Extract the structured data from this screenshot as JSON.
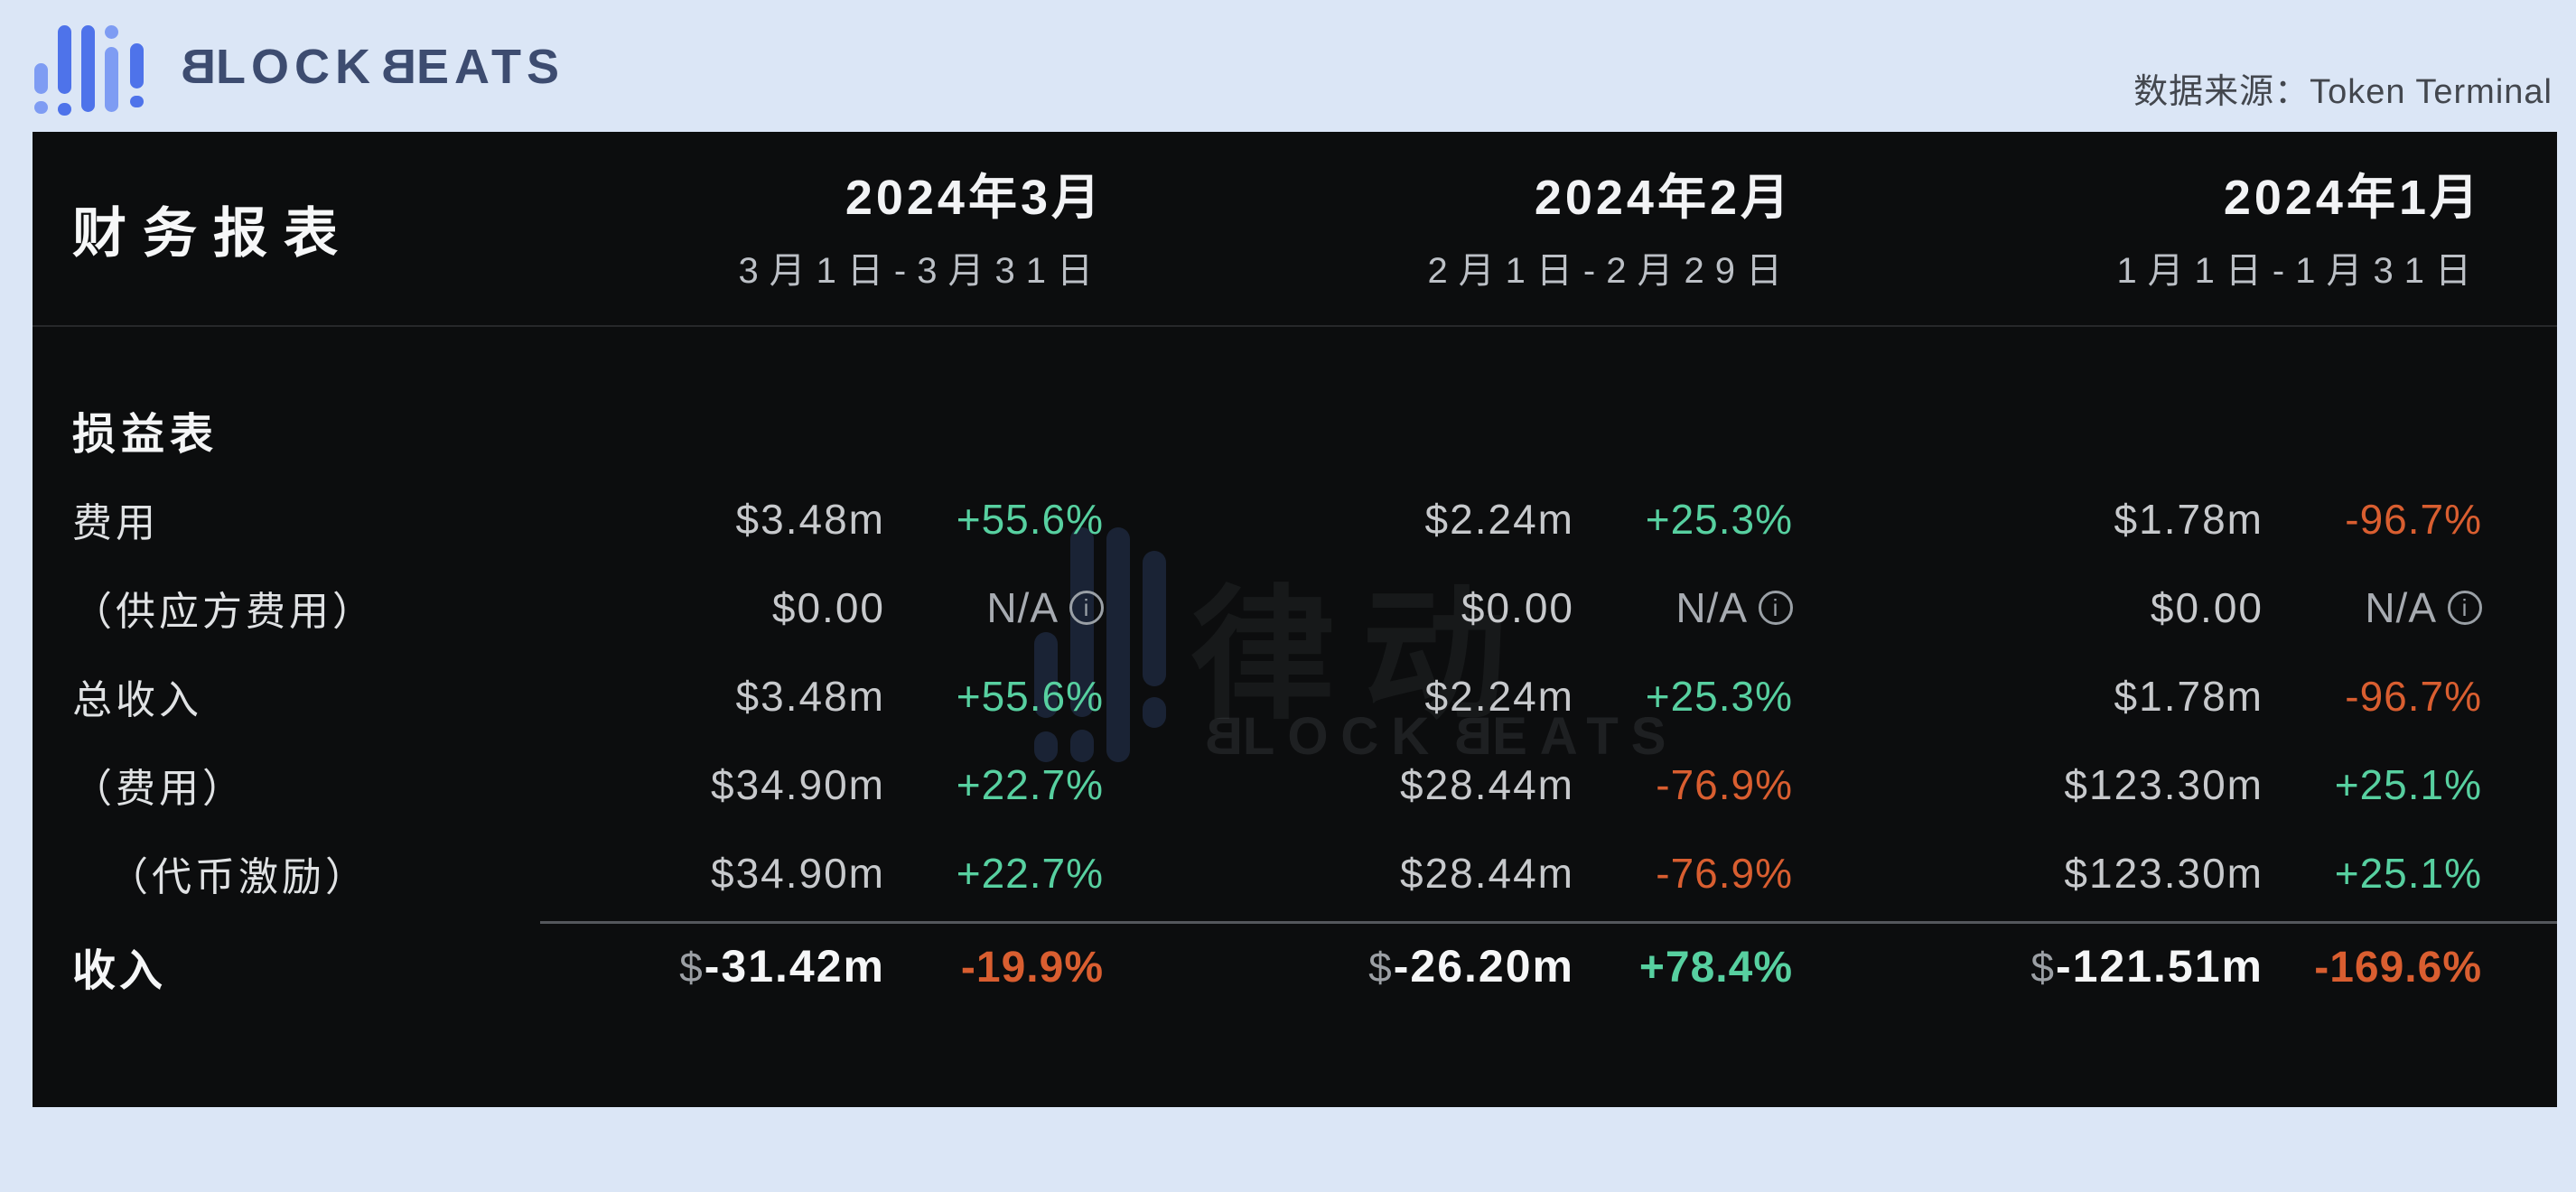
{
  "brand": {
    "name": "BLOCKBEATS",
    "b": "B",
    "lock": "LOCK",
    "eats": "EATS"
  },
  "topbar": {
    "source_label": "数据来源：",
    "source_value": "Token Terminal"
  },
  "watermark": {
    "cjk": "律动",
    "b": "B",
    "lock": "LOCK",
    "eats": "EATS"
  },
  "colors": {
    "positive": "#57d0a0",
    "negative": "#d95e30",
    "brand_blue": "#4e73ea",
    "panel_bg": "#0c0d0e",
    "page_bg": "#dbe6f6"
  },
  "report": {
    "title": "财务报表",
    "section": "损益表",
    "currency": "$",
    "columns": [
      {
        "month": "2024年3月",
        "range": "3月1日-3月31日"
      },
      {
        "month": "2024年2月",
        "range": "2月1日-2月29日"
      },
      {
        "month": "2024年1月",
        "range": "1月1日-1月31日"
      }
    ],
    "rows": [
      {
        "label": "费用",
        "values": [
          {
            "num": "3.48m",
            "change": "+55.6%",
            "dir": "up"
          },
          {
            "num": "2.24m",
            "change": "+25.3%",
            "dir": "up"
          },
          {
            "num": "1.78m",
            "change": "-96.7%",
            "dir": "down"
          }
        ]
      },
      {
        "label": "（供应方费用）",
        "values": [
          {
            "num": "0.00",
            "change": "N/A",
            "dir": "na"
          },
          {
            "num": "0.00",
            "change": "N/A",
            "dir": "na"
          },
          {
            "num": "0.00",
            "change": "N/A",
            "dir": "na"
          }
        ]
      },
      {
        "label": "总收入",
        "values": [
          {
            "num": "3.48m",
            "change": "+55.6%",
            "dir": "up"
          },
          {
            "num": "2.24m",
            "change": "+25.3%",
            "dir": "up"
          },
          {
            "num": "1.78m",
            "change": "-96.7%",
            "dir": "down"
          }
        ]
      },
      {
        "label": "（费用）",
        "values": [
          {
            "num": "34.90m",
            "change": "+22.7%",
            "dir": "up"
          },
          {
            "num": "28.44m",
            "change": "-76.9%",
            "dir": "down"
          },
          {
            "num": "123.30m",
            "change": "+25.1%",
            "dir": "up"
          }
        ]
      },
      {
        "label": "（代币激励）",
        "values": [
          {
            "num": "34.90m",
            "change": "+22.7%",
            "dir": "up"
          },
          {
            "num": "28.44m",
            "change": "-76.9%",
            "dir": "down"
          },
          {
            "num": "123.30m",
            "change": "+25.1%",
            "dir": "up"
          }
        ]
      },
      {
        "label": "收入",
        "values": [
          {
            "num": "-31.42m",
            "change": "-19.9%",
            "dir": "down"
          },
          {
            "num": "-26.20m",
            "change": "+78.4%",
            "dir": "up"
          },
          {
            "num": "-121.51m",
            "change": "-169.6%",
            "dir": "down"
          }
        ]
      }
    ]
  },
  "chart_data": {
    "type": "table",
    "title": "财务报表",
    "section": "损益表",
    "unit": "USD",
    "columns": [
      "2024年3月 (3月1日-3月31日)",
      "2024年2月 (2月1日-2月29日)",
      "2024年1月 (1月1日-1月31日)"
    ],
    "rows": [
      {
        "label": "费用",
        "amounts_usd_m": [
          3.48,
          2.24,
          1.78
        ],
        "change_pct": [
          55.6,
          25.3,
          -96.7
        ]
      },
      {
        "label": "（供应方费用）",
        "amounts_usd_m": [
          0.0,
          0.0,
          0.0
        ],
        "change_pct": [
          null,
          null,
          null
        ]
      },
      {
        "label": "总收入",
        "amounts_usd_m": [
          3.48,
          2.24,
          1.78
        ],
        "change_pct": [
          55.6,
          25.3,
          -96.7
        ]
      },
      {
        "label": "（费用）",
        "amounts_usd_m": [
          34.9,
          28.44,
          123.3
        ],
        "change_pct": [
          22.7,
          -76.9,
          25.1
        ]
      },
      {
        "label": "（代币激励）",
        "amounts_usd_m": [
          34.9,
          28.44,
          123.3
        ],
        "change_pct": [
          22.7,
          -76.9,
          25.1
        ]
      },
      {
        "label": "收入",
        "amounts_usd_m": [
          -31.42,
          -26.2,
          -121.51
        ],
        "change_pct": [
          -19.9,
          78.4,
          -169.6
        ]
      }
    ],
    "data_source": "Token Terminal"
  }
}
